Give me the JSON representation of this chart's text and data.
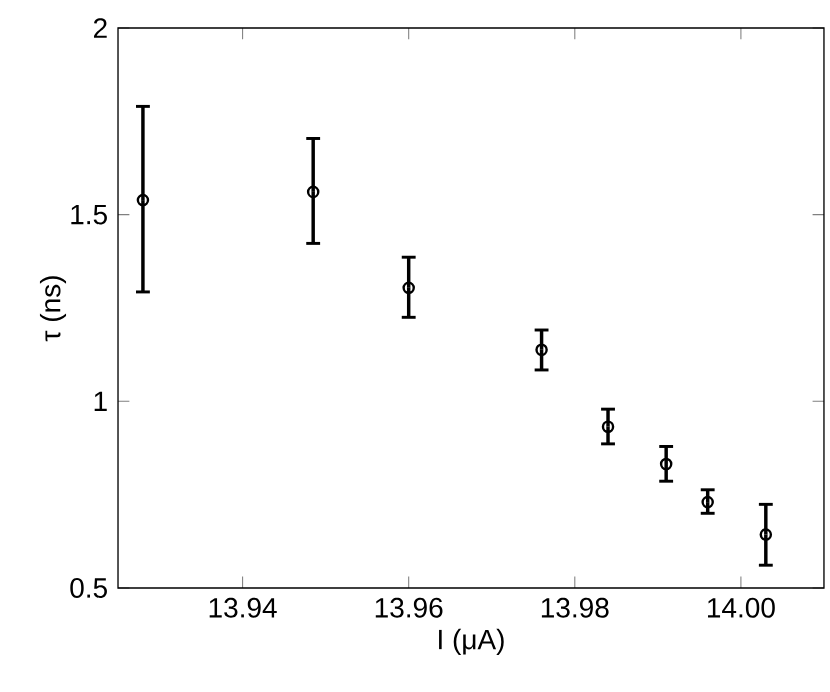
{
  "chart_data": {
    "type": "scatter",
    "xlabel": "I (μA)",
    "ylabel": "τ (ns)",
    "x": [
      13.928,
      13.9485,
      13.96,
      13.976,
      13.984,
      13.991,
      13.996,
      14.003
    ],
    "values": [
      1.539,
      1.561,
      1.304,
      1.138,
      0.932,
      0.832,
      0.73,
      0.643
    ],
    "errors": [
      [
        1.293,
        1.79
      ],
      [
        1.423,
        1.704
      ],
      [
        1.225,
        1.386
      ],
      [
        1.084,
        1.191
      ],
      [
        0.886,
        0.979
      ],
      [
        0.786,
        0.879
      ],
      [
        0.7,
        0.763
      ],
      [
        0.561,
        0.724
      ]
    ],
    "color": "#000000",
    "marker": "circle",
    "grid": false,
    "xlim": [
      13.925,
      14.01
    ],
    "ylim": [
      0.5,
      2
    ],
    "xticks": [
      13.94,
      13.96,
      13.98,
      {
        "value": 14.0,
        "label": "14.00"
      }
    ],
    "yticks": [
      0.5,
      1,
      1.5,
      2
    ]
  }
}
